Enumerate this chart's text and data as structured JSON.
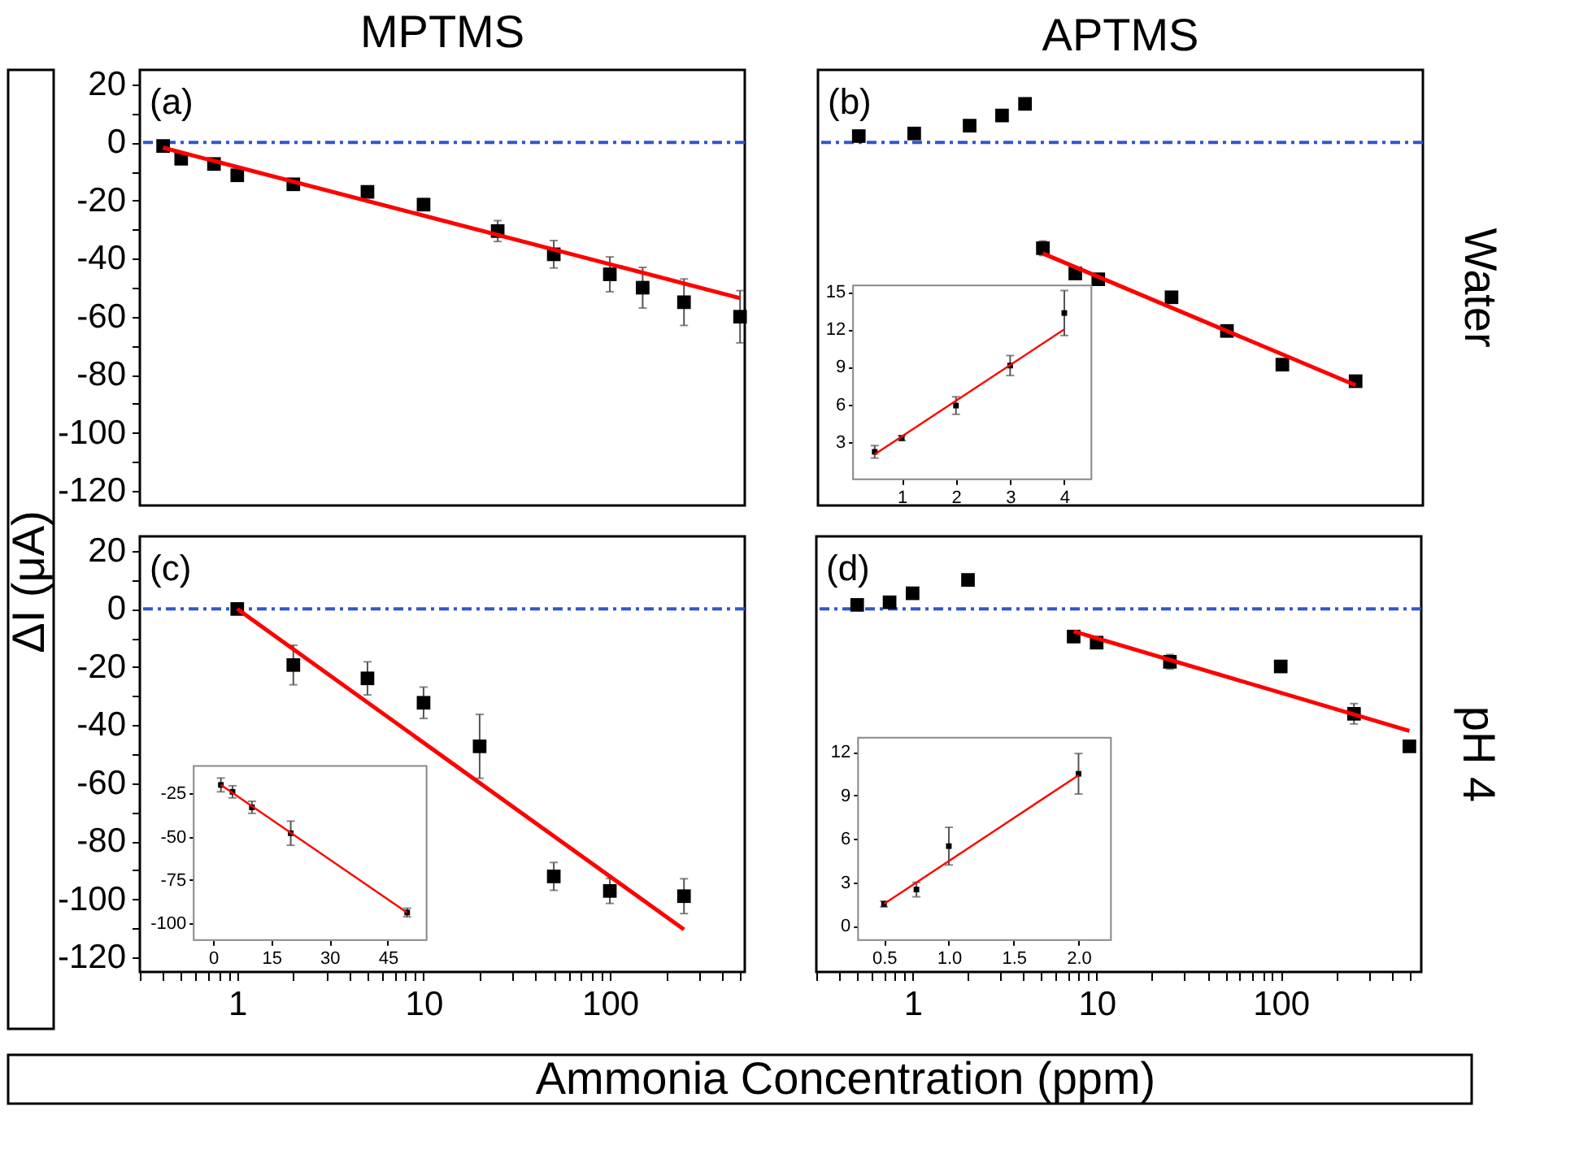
{
  "chart_data": [
    {
      "type": "scatter",
      "title": "MPTMS",
      "ylabel": "ΔI (μA)",
      "annotations": [
        "(a)"
      ],
      "log": "x",
      "tick_labels": "y",
      "xlim": [
        0.3,
        530
      ],
      "ylim": [
        -125,
        25
      ],
      "yticks": [
        -120,
        {
          "value": -110,
          "label": null
        },
        -100,
        {
          "value": -90,
          "label": null
        },
        -80,
        {
          "value": -70,
          "label": null
        },
        -60,
        {
          "value": -50,
          "label": null
        },
        -40,
        {
          "value": -30,
          "label": null
        },
        -20,
        {
          "value": -10,
          "label": null
        },
        0,
        {
          "value": 10,
          "label": null
        },
        20
      ],
      "ref_lines": [
        {
          "axis": "y",
          "value": 0,
          "color": "#3355cc",
          "line_style": "dashed"
        }
      ],
      "series": [
        {
          "color": "#000000",
          "marker": "square",
          "x": [
            0.4,
            0.5,
            0.75,
            1,
            2,
            5,
            10,
            25,
            50,
            100,
            150,
            250,
            500
          ],
          "values": [
            -1.2,
            -5.6,
            -7.4,
            -11.3,
            -14.4,
            -17,
            -21.4,
            -30.5,
            -38.5,
            -45.4,
            -50,
            -55,
            -60
          ],
          "errors": [
            1,
            1,
            1,
            1,
            1.5,
            1.5,
            2,
            3.6,
            4.7,
            6,
            7,
            8,
            9
          ]
        },
        {
          "type": "line",
          "color": "#ff0000",
          "x": [
            0.4,
            500
          ],
          "values": [
            -1.8,
            -53.6
          ]
        }
      ]
    },
    {
      "type": "scatter",
      "title": "APTMS",
      "y2label": "Water",
      "annotations": [
        "(b)"
      ],
      "log": "x",
      "xlim": [
        0.3,
        580
      ],
      "ylim": [
        -125,
        25
      ],
      "ref_lines": [
        {
          "axis": "y",
          "value": 0,
          "color": "#3355cc",
          "line_style": "dashed"
        }
      ],
      "series": [
        {
          "color": "#000000",
          "marker": "square",
          "x": [
            0.5,
            1,
            2,
            3,
            4,
            5,
            7.5,
            10,
            25,
            50,
            100,
            250
          ],
          "values": [
            2.2,
            3.1,
            5.8,
            9.3,
            13.3,
            -36.4,
            -45.1,
            -47.1,
            -53.3,
            -64.9,
            -76.5,
            -82.2
          ],
          "errors": [
            null,
            null,
            null,
            null,
            null,
            2.5,
            1,
            1.5,
            null,
            1,
            1.5,
            null
          ]
        },
        {
          "type": "line",
          "color": "#ff0000",
          "x": [
            5,
            250
          ],
          "values": [
            -38.2,
            -83.6
          ]
        }
      ]
    },
    {
      "type": "scatter",
      "xlim": [
        0.1,
        4.5
      ],
      "ylim": [
        0,
        15.5
      ],
      "xticks": [
        1,
        2,
        3,
        4
      ],
      "yticks": [
        3,
        6,
        9,
        12,
        15
      ],
      "series": [
        {
          "color": "#000000",
          "marker": "square",
          "x": [
            0.5,
            1,
            2,
            3,
            4
          ],
          "values": [
            2.2,
            3.3,
            5.9,
            9.1,
            13.3
          ],
          "errors": [
            0.5,
            0.2,
            0.7,
            0.8,
            1.8
          ]
        },
        {
          "type": "line",
          "color": "#ff0000",
          "x": [
            0.5,
            4
          ],
          "values": [
            2.0,
            12.0
          ]
        }
      ]
    },
    {
      "type": "scatter",
      "xlabel": "Ammonia Concentration (ppm)",
      "annotations": [
        "(c)"
      ],
      "log": "x",
      "xlim": [
        0.3,
        530
      ],
      "ylim": [
        -125,
        25
      ],
      "xticks": [
        {
          "value": 0.3,
          "label": null
        },
        {
          "value": 0.4,
          "label": null
        },
        {
          "value": 0.5,
          "label": null
        },
        {
          "value": 0.6,
          "label": null
        },
        {
          "value": 0.7,
          "label": null
        },
        {
          "value": 0.8,
          "label": null
        },
        {
          "value": 0.9,
          "label": null
        },
        1,
        {
          "value": 2,
          "label": null
        },
        {
          "value": 3,
          "label": null
        },
        {
          "value": 4,
          "label": null
        },
        {
          "value": 5,
          "label": null
        },
        {
          "value": 6,
          "label": null
        },
        {
          "value": 7,
          "label": null
        },
        {
          "value": 8,
          "label": null
        },
        {
          "value": 9,
          "label": null
        },
        10,
        {
          "value": 20,
          "label": null
        },
        {
          "value": 30,
          "label": null
        },
        {
          "value": 40,
          "label": null
        },
        {
          "value": 50,
          "label": null
        },
        {
          "value": 60,
          "label": null
        },
        {
          "value": 70,
          "label": null
        },
        {
          "value": 80,
          "label": null
        },
        {
          "value": 90,
          "label": null
        },
        100,
        {
          "value": 200,
          "label": null
        },
        {
          "value": 300,
          "label": null
        },
        {
          "value": 400,
          "label": null
        },
        {
          "value": 500,
          "label": null
        }
      ],
      "yticks": [
        -120,
        {
          "value": -110,
          "label": null
        },
        -100,
        {
          "value": -90,
          "label": null
        },
        -80,
        {
          "value": -70,
          "label": null
        },
        -60,
        {
          "value": -50,
          "label": null
        },
        -40,
        {
          "value": -30,
          "label": null
        },
        -20,
        {
          "value": -10,
          "label": null
        },
        0,
        {
          "value": 10,
          "label": null
        },
        20
      ],
      "ref_lines": [
        {
          "axis": "y",
          "value": 0,
          "color": "#3355cc",
          "line_style": "dashed"
        }
      ],
      "series": [
        {
          "color": "#000000",
          "marker": "square",
          "x": [
            1,
            2,
            5,
            10,
            20,
            50,
            100,
            250
          ],
          "values": [
            0,
            -19.3,
            -23.9,
            -32.3,
            -47.3,
            -92.1,
            -97.1,
            -98.9
          ],
          "errors": [
            null,
            6.8,
            5.7,
            5.4,
            11,
            4.8,
            4.3,
            6
          ]
        },
        {
          "type": "line",
          "color": "#ff0000",
          "x": [
            1,
            250
          ],
          "values": [
            0,
            -110.4
          ]
        }
      ]
    },
    {
      "type": "scatter",
      "xlim": [
        -5,
        55
      ],
      "ylim": [
        -110,
        -9
      ],
      "xticks": [
        0,
        15,
        30,
        45
      ],
      "yticks": [
        -25,
        -50,
        -75,
        -100
      ],
      "series": [
        {
          "color": "#000000",
          "marker": "square",
          "x": [
            2,
            5,
            10,
            20,
            50
          ],
          "values": [
            -20,
            -24,
            -33,
            -48,
            -94
          ],
          "errors": [
            4,
            3.5,
            3.5,
            7,
            2.5
          ]
        },
        {
          "type": "line",
          "color": "#ff0000",
          "x": [
            2,
            50
          ],
          "values": [
            -20,
            -94
          ]
        }
      ]
    },
    {
      "type": "scatter",
      "y2label": "pH 4",
      "annotations": [
        "(d)"
      ],
      "log": "x",
      "tick_labels": "x",
      "xlim": [
        0.3,
        580
      ],
      "ylim": [
        -125,
        25
      ],
      "xticks": [
        {
          "value": 0.3,
          "label": null
        },
        {
          "value": 0.4,
          "label": null
        },
        {
          "value": 0.5,
          "label": null
        },
        {
          "value": 0.6,
          "label": null
        },
        {
          "value": 0.7,
          "label": null
        },
        {
          "value": 0.8,
          "label": null
        },
        {
          "value": 0.9,
          "label": null
        },
        1,
        {
          "value": 2,
          "label": null
        },
        {
          "value": 3,
          "label": null
        },
        {
          "value": 4,
          "label": null
        },
        {
          "value": 5,
          "label": null
        },
        {
          "value": 6,
          "label": null
        },
        {
          "value": 7,
          "label": null
        },
        {
          "value": 8,
          "label": null
        },
        {
          "value": 9,
          "label": null
        },
        10,
        {
          "value": 20,
          "label": null
        },
        {
          "value": 30,
          "label": null
        },
        {
          "value": 40,
          "label": null
        },
        {
          "value": 50,
          "label": null
        },
        {
          "value": 60,
          "label": null
        },
        {
          "value": 70,
          "label": null
        },
        {
          "value": 80,
          "label": null
        },
        {
          "value": 90,
          "label": null
        },
        100,
        {
          "value": 200,
          "label": null
        },
        {
          "value": 300,
          "label": null
        },
        {
          "value": 400,
          "label": null
        },
        {
          "value": 500,
          "label": null
        }
      ],
      "ref_lines": [
        {
          "axis": "y",
          "value": 0,
          "color": "#3355cc",
          "line_style": "dashed"
        }
      ],
      "series": [
        {
          "color": "#000000",
          "marker": "square",
          "x": [
            0.5,
            0.75,
            1,
            2,
            7.5,
            10,
            25,
            100,
            250,
            500
          ],
          "values": [
            1.4,
            2.3,
            5.4,
            10,
            -9.5,
            -11.6,
            -18.2,
            -19.8,
            -36.1,
            -47.3
          ],
          "errors": [
            null,
            null,
            null,
            null,
            2,
            null,
            2.5,
            null,
            3.5,
            null
          ]
        },
        {
          "type": "line",
          "color": "#ff0000",
          "x": [
            7.5,
            500
          ],
          "values": [
            -7.7,
            -42
          ]
        }
      ]
    },
    {
      "type": "scatter",
      "xlim": [
        0.3,
        2.25
      ],
      "ylim": [
        -1,
        13
      ],
      "xticks": [
        {
          "value": 0.5,
          "label": "0.5"
        },
        {
          "value": 1,
          "label": "1.0"
        },
        {
          "value": 1.5,
          "label": "1.5"
        },
        {
          "value": 2,
          "label": "2.0"
        }
      ],
      "yticks": [
        0,
        3,
        6,
        9,
        12
      ],
      "series": [
        {
          "color": "#000000",
          "marker": "square",
          "x": [
            0.5,
            0.75,
            1,
            2
          ],
          "values": [
            1.5,
            2.5,
            5.5,
            10.5
          ],
          "errors": [
            0.2,
            0.5,
            1.3,
            1.4
          ]
        },
        {
          "type": "line",
          "color": "#ff0000",
          "x": [
            0.5,
            2
          ],
          "values": [
            1.5,
            10.4
          ]
        }
      ]
    }
  ]
}
